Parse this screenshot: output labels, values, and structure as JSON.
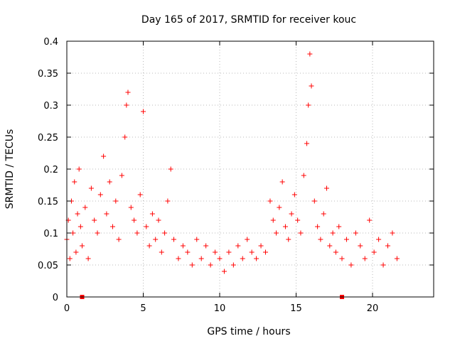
{
  "chart_data": {
    "type": "scatter",
    "title": "Day 165 of 2017, SRMTID for receiver kouc",
    "xlabel": "GPS time / hours",
    "ylabel": "SRMTID / TECUs",
    "xlim": [
      0,
      24
    ],
    "ylim": [
      0,
      0.4
    ],
    "xticks": [
      0,
      5,
      10,
      15,
      20
    ],
    "xtick_labels": [
      "0",
      "5",
      "10",
      "15",
      "20"
    ],
    "yticks": [
      0,
      0.05,
      0.1,
      0.15,
      0.2,
      0.25,
      0.3,
      0.35,
      0.4
    ],
    "ytick_labels": [
      "0",
      "0.05",
      "0.1",
      "0.15",
      "0.2",
      "0.25",
      "0.3",
      "0.35",
      "0.4"
    ],
    "grid": true,
    "series_color": "#ff0000",
    "series": [
      {
        "name": "SRMTID",
        "marker": "plus",
        "x": [
          0.0,
          0.1,
          0.2,
          0.3,
          0.4,
          0.5,
          0.6,
          0.7,
          0.8,
          0.9,
          1.0,
          1.2,
          1.4,
          1.6,
          1.8,
          2.0,
          2.2,
          2.4,
          2.6,
          2.8,
          3.0,
          3.2,
          3.4,
          3.6,
          3.8,
          3.9,
          4.0,
          4.2,
          4.4,
          4.6,
          4.8,
          5.0,
          5.2,
          5.4,
          5.6,
          5.8,
          6.0,
          6.2,
          6.4,
          6.6,
          6.8,
          7.0,
          7.3,
          7.6,
          7.9,
          8.2,
          8.5,
          8.8,
          9.1,
          9.4,
          9.7,
          10.0,
          10.3,
          10.6,
          10.9,
          11.2,
          11.5,
          11.8,
          12.1,
          12.4,
          12.7,
          13.0,
          13.3,
          13.5,
          13.7,
          13.9,
          14.1,
          14.3,
          14.5,
          14.7,
          14.9,
          15.1,
          15.3,
          15.5,
          15.7,
          15.8,
          15.9,
          16.0,
          16.2,
          16.4,
          16.6,
          16.8,
          17.0,
          17.2,
          17.4,
          17.6,
          17.8,
          18.0,
          18.3,
          18.6,
          18.9,
          19.2,
          19.5,
          19.8,
          20.1,
          20.4,
          20.7,
          21.0,
          21.3,
          21.6
        ],
        "y": [
          0.09,
          0.12,
          0.06,
          0.15,
          0.1,
          0.18,
          0.07,
          0.13,
          0.2,
          0.11,
          0.08,
          0.14,
          0.06,
          0.17,
          0.12,
          0.1,
          0.16,
          0.22,
          0.13,
          0.18,
          0.11,
          0.15,
          0.09,
          0.19,
          0.25,
          0.3,
          0.32,
          0.14,
          0.12,
          0.1,
          0.16,
          0.29,
          0.11,
          0.08,
          0.13,
          0.09,
          0.12,
          0.07,
          0.1,
          0.15,
          0.2,
          0.09,
          0.06,
          0.08,
          0.07,
          0.05,
          0.09,
          0.06,
          0.08,
          0.05,
          0.07,
          0.06,
          0.04,
          0.07,
          0.05,
          0.08,
          0.06,
          0.09,
          0.07,
          0.06,
          0.08,
          0.07,
          0.15,
          0.12,
          0.1,
          0.14,
          0.18,
          0.11,
          0.09,
          0.13,
          0.16,
          0.12,
          0.1,
          0.19,
          0.24,
          0.3,
          0.38,
          0.33,
          0.15,
          0.11,
          0.09,
          0.13,
          0.17,
          0.08,
          0.1,
          0.07,
          0.11,
          0.06,
          0.09,
          0.05,
          0.1,
          0.08,
          0.06,
          0.12,
          0.07,
          0.09,
          0.05,
          0.08,
          0.1,
          0.06
        ]
      }
    ],
    "markers": [
      {
        "x": 1.0,
        "y": 0,
        "shape": "square"
      },
      {
        "x": 18.0,
        "y": 0,
        "shape": "square"
      }
    ]
  }
}
